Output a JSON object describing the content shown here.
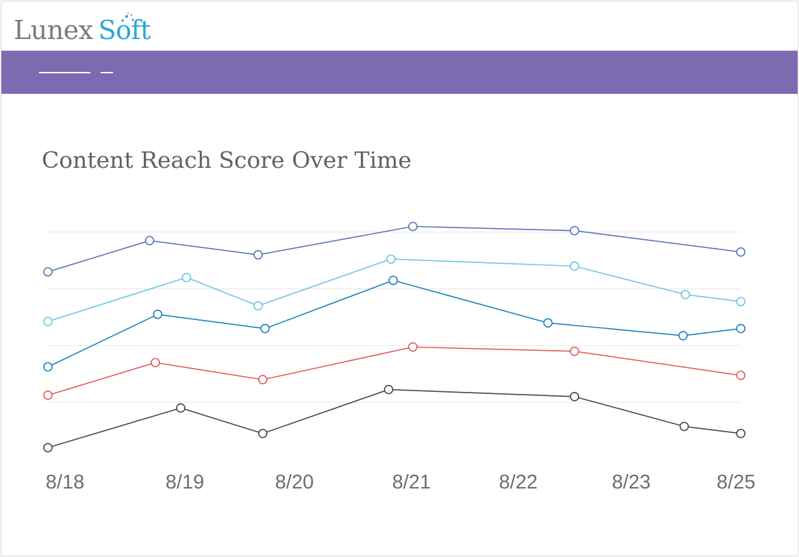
{
  "brand": {
    "name_part1": "Lunex",
    "name_part2": "Soft",
    "color_part1": "#7a7a7a",
    "color_part2": "#2ea3dd"
  },
  "nav": {
    "background": "#7b6cb2"
  },
  "chart_data": {
    "type": "line",
    "title": "Content Reach Score Over Time",
    "xlabel": "",
    "ylabel": "",
    "x_tick_labels": [
      "8/18",
      "8/19",
      "8/20",
      "8/21",
      "8/22",
      "8/23",
      "8/25"
    ],
    "xlim": [
      0,
      6
    ],
    "ylim": [
      0,
      100
    ],
    "grid": "horizontal",
    "y_gridlines": [
      20,
      40,
      60,
      80
    ],
    "legend": "none",
    "series": [
      {
        "color": "#5b72b8",
        "points": [
          {
            "x": 0,
            "y": 66
          },
          {
            "x": 0.88,
            "y": 77
          },
          {
            "x": 1.82,
            "y": 72
          },
          {
            "x": 3.16,
            "y": 82
          },
          {
            "x": 4.56,
            "y": 80.5
          },
          {
            "x": 6,
            "y": 73
          }
        ]
      },
      {
        "color": "#6ec4e6",
        "points": [
          {
            "x": 0,
            "y": 48.5
          },
          {
            "x": 1.2,
            "y": 64
          },
          {
            "x": 1.82,
            "y": 54
          },
          {
            "x": 2.97,
            "y": 70.5
          },
          {
            "x": 4.56,
            "y": 68
          },
          {
            "x": 5.52,
            "y": 58
          },
          {
            "x": 6,
            "y": 55.5
          }
        ]
      },
      {
        "color": "#1b7fba",
        "points": [
          {
            "x": 0,
            "y": 32.5
          },
          {
            "x": 0.95,
            "y": 51
          },
          {
            "x": 1.88,
            "y": 46
          },
          {
            "x": 2.99,
            "y": 63
          },
          {
            "x": 4.33,
            "y": 48
          },
          {
            "x": 5.5,
            "y": 43.5
          },
          {
            "x": 6,
            "y": 46
          }
        ]
      },
      {
        "color": "#e05a5a",
        "points": [
          {
            "x": 0,
            "y": 22.5
          },
          {
            "x": 0.93,
            "y": 34
          },
          {
            "x": 1.86,
            "y": 28
          },
          {
            "x": 3.16,
            "y": 39.5
          },
          {
            "x": 4.56,
            "y": 38
          },
          {
            "x": 6,
            "y": 29.5
          }
        ]
      },
      {
        "color": "#444444",
        "points": [
          {
            "x": 0,
            "y": 4
          },
          {
            "x": 1.15,
            "y": 18
          },
          {
            "x": 1.86,
            "y": 9
          },
          {
            "x": 2.95,
            "y": 24.5
          },
          {
            "x": 4.56,
            "y": 22
          },
          {
            "x": 5.51,
            "y": 11.5
          },
          {
            "x": 6,
            "y": 9
          }
        ]
      }
    ]
  }
}
